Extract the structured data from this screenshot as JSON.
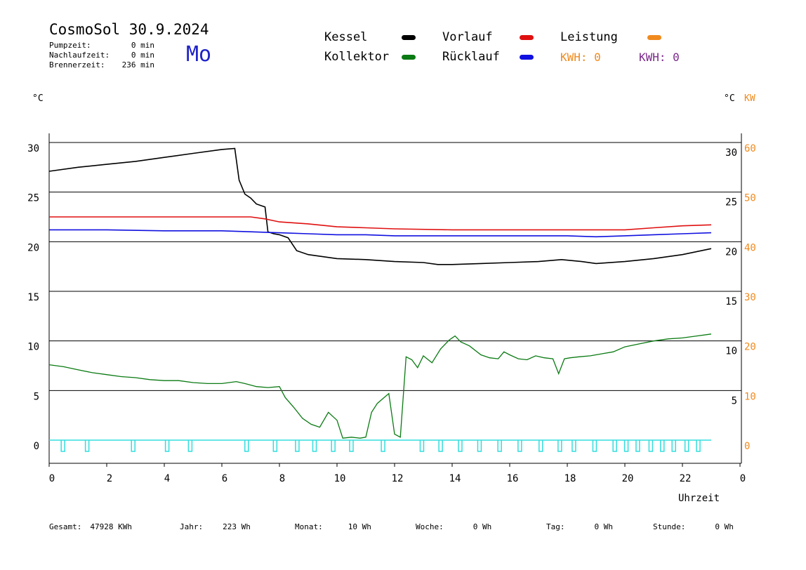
{
  "header": {
    "title": "CosmoSol 30.9.2024",
    "day": "Mo",
    "stats": [
      {
        "label": "Pumpzeit:",
        "value": "0 min"
      },
      {
        "label": "Nachlaufzeit:",
        "value": "0 min"
      },
      {
        "label": "Brennerzeit:",
        "value": "236 min"
      }
    ]
  },
  "legend": {
    "kessel": "Kessel",
    "vorlauf": "Vorlauf",
    "leistung": "Leistung",
    "kollektor": "Kollektor",
    "ruecklauf": "Rücklauf",
    "kwh1": "KWH: 0",
    "kwh2": "KWH: 0"
  },
  "axes": {
    "left_unit": "°C",
    "right_unit": "°C",
    "right_unit2": "KW",
    "xlabel": "Uhrzeit"
  },
  "footer": [
    {
      "label": "Gesamt:",
      "value": "47928 KWh"
    },
    {
      "label": "Jahr:",
      "value": "223 Wh"
    },
    {
      "label": "Monat:",
      "value": "10 Wh"
    },
    {
      "label": "Woche:",
      "value": "0 Wh"
    },
    {
      "label": "Tag:",
      "value": "0 Wh"
    },
    {
      "label": "Stunde:",
      "value": "0 Wh"
    }
  ],
  "colors": {
    "kessel": "#000000",
    "vorlauf": "#e01010",
    "leistung": "#f08a1e",
    "kollektor": "#0a7a12",
    "ruecklauf": "#1010e0",
    "pump": "#33dddd",
    "kw_axis": "#f08a1e"
  },
  "chart_data": {
    "type": "line",
    "xlabel": "Uhrzeit",
    "xlim": [
      0,
      24
    ],
    "ylim": [
      -2.5,
      30
    ],
    "x_ticks": [
      "0",
      "2",
      "4",
      "6",
      "8",
      "10",
      "12",
      "14",
      "16",
      "18",
      "20",
      "22",
      "0"
    ],
    "y_ticks_left": [
      "30",
      "25",
      "20",
      "15",
      "10",
      "5",
      "0"
    ],
    "y_ticks_right": [
      "30",
      "25",
      "20",
      "15",
      "10",
      "5"
    ],
    "y2_ticks_right": [
      "60",
      "50",
      "40",
      "30",
      "20",
      "10",
      "0"
    ],
    "series": [
      {
        "name": "Kessel",
        "color": "#000000",
        "x": [
          0,
          1,
          2,
          3,
          4,
          5,
          6,
          6.45,
          6.6,
          6.8,
          7.0,
          7.2,
          7.5,
          7.6,
          7.8,
          8.0,
          8.3,
          8.6,
          9.0,
          10.0,
          11.0,
          12.0,
          13.0,
          13.5,
          14.0,
          15.0,
          16.0,
          17.0,
          17.8,
          18.5,
          19.0,
          20.0,
          21.0,
          22.0,
          23.0
        ],
        "y": [
          27.1,
          27.5,
          27.8,
          28.1,
          28.5,
          28.9,
          29.3,
          29.4,
          26.2,
          24.8,
          24.4,
          23.8,
          23.5,
          21.0,
          20.8,
          20.7,
          20.4,
          19.1,
          18.7,
          18.3,
          18.2,
          18.0,
          17.9,
          17.7,
          17.7,
          17.8,
          17.9,
          18.0,
          18.2,
          18.0,
          17.8,
          18.0,
          18.3,
          18.7,
          19.3
        ]
      },
      {
        "name": "Vorlauf",
        "color": "#e01010",
        "x": [
          0,
          2,
          4,
          6,
          7,
          7.5,
          8,
          9,
          10,
          11,
          12,
          14,
          16,
          18,
          19,
          20,
          21,
          22,
          23
        ],
        "y": [
          22.5,
          22.5,
          22.5,
          22.5,
          22.5,
          22.3,
          22.0,
          21.8,
          21.5,
          21.4,
          21.3,
          21.2,
          21.2,
          21.2,
          21.2,
          21.2,
          21.4,
          21.6,
          21.7
        ]
      },
      {
        "name": "Rücklauf",
        "color": "#1010e0",
        "x": [
          0,
          2,
          4,
          6,
          7,
          8,
          9,
          10,
          11,
          12,
          14,
          16,
          18,
          19,
          20,
          21,
          22,
          23
        ],
        "y": [
          21.2,
          21.2,
          21.1,
          21.1,
          21.0,
          20.9,
          20.8,
          20.7,
          20.7,
          20.6,
          20.6,
          20.6,
          20.6,
          20.5,
          20.6,
          20.7,
          20.8,
          20.9
        ]
      },
      {
        "name": "Kollektor",
        "color": "#0a7a12",
        "x": [
          0,
          0.5,
          1.0,
          1.5,
          2.0,
          2.5,
          3.0,
          3.5,
          4.0,
          4.5,
          5.0,
          5.5,
          6.0,
          6.5,
          6.8,
          7.2,
          7.6,
          8.0,
          8.2,
          8.5,
          8.8,
          9.1,
          9.4,
          9.7,
          10.0,
          10.2,
          10.5,
          10.8,
          11.0,
          11.2,
          11.4,
          11.6,
          11.8,
          12.0,
          12.2,
          12.4,
          12.6,
          12.8,
          13.0,
          13.3,
          13.6,
          13.9,
          14.1,
          14.3,
          14.6,
          15.0,
          15.3,
          15.6,
          15.8,
          16.0,
          16.3,
          16.6,
          16.9,
          17.2,
          17.5,
          17.7,
          17.9,
          18.1,
          18.4,
          18.8,
          19.2,
          19.6,
          20.0,
          20.5,
          21.0,
          21.5,
          22.0,
          22.5,
          23.0
        ],
        "y": [
          7.6,
          7.4,
          7.1,
          6.8,
          6.6,
          6.4,
          6.3,
          6.1,
          6.0,
          6.0,
          5.8,
          5.7,
          5.7,
          5.9,
          5.7,
          5.4,
          5.3,
          5.4,
          4.3,
          3.3,
          2.2,
          1.6,
          1.3,
          2.8,
          2.0,
          0.2,
          0.3,
          0.2,
          0.3,
          2.8,
          3.7,
          4.2,
          4.7,
          0.6,
          0.3,
          8.4,
          8.1,
          7.3,
          8.5,
          7.8,
          9.2,
          10.1,
          10.5,
          9.9,
          9.5,
          8.6,
          8.3,
          8.2,
          8.9,
          8.6,
          8.2,
          8.1,
          8.5,
          8.3,
          8.2,
          6.7,
          8.2,
          8.3,
          8.4,
          8.5,
          8.7,
          8.9,
          9.4,
          9.7,
          10.0,
          10.2,
          10.3,
          10.5,
          10.7
        ]
      }
    ],
    "pump": {
      "name": "Pumpe",
      "color": "#33dddd",
      "x": [
        0.48,
        1.32,
        2.92,
        4.1,
        4.9,
        6.86,
        7.85,
        8.62,
        9.22,
        9.87,
        10.5,
        11.6,
        12.95,
        13.6,
        14.28,
        14.95,
        15.65,
        16.35,
        17.08,
        17.74,
        18.23,
        18.95,
        19.65,
        20.05,
        20.45,
        20.9,
        21.3,
        21.7,
        22.15,
        22.55
      ]
    }
  }
}
